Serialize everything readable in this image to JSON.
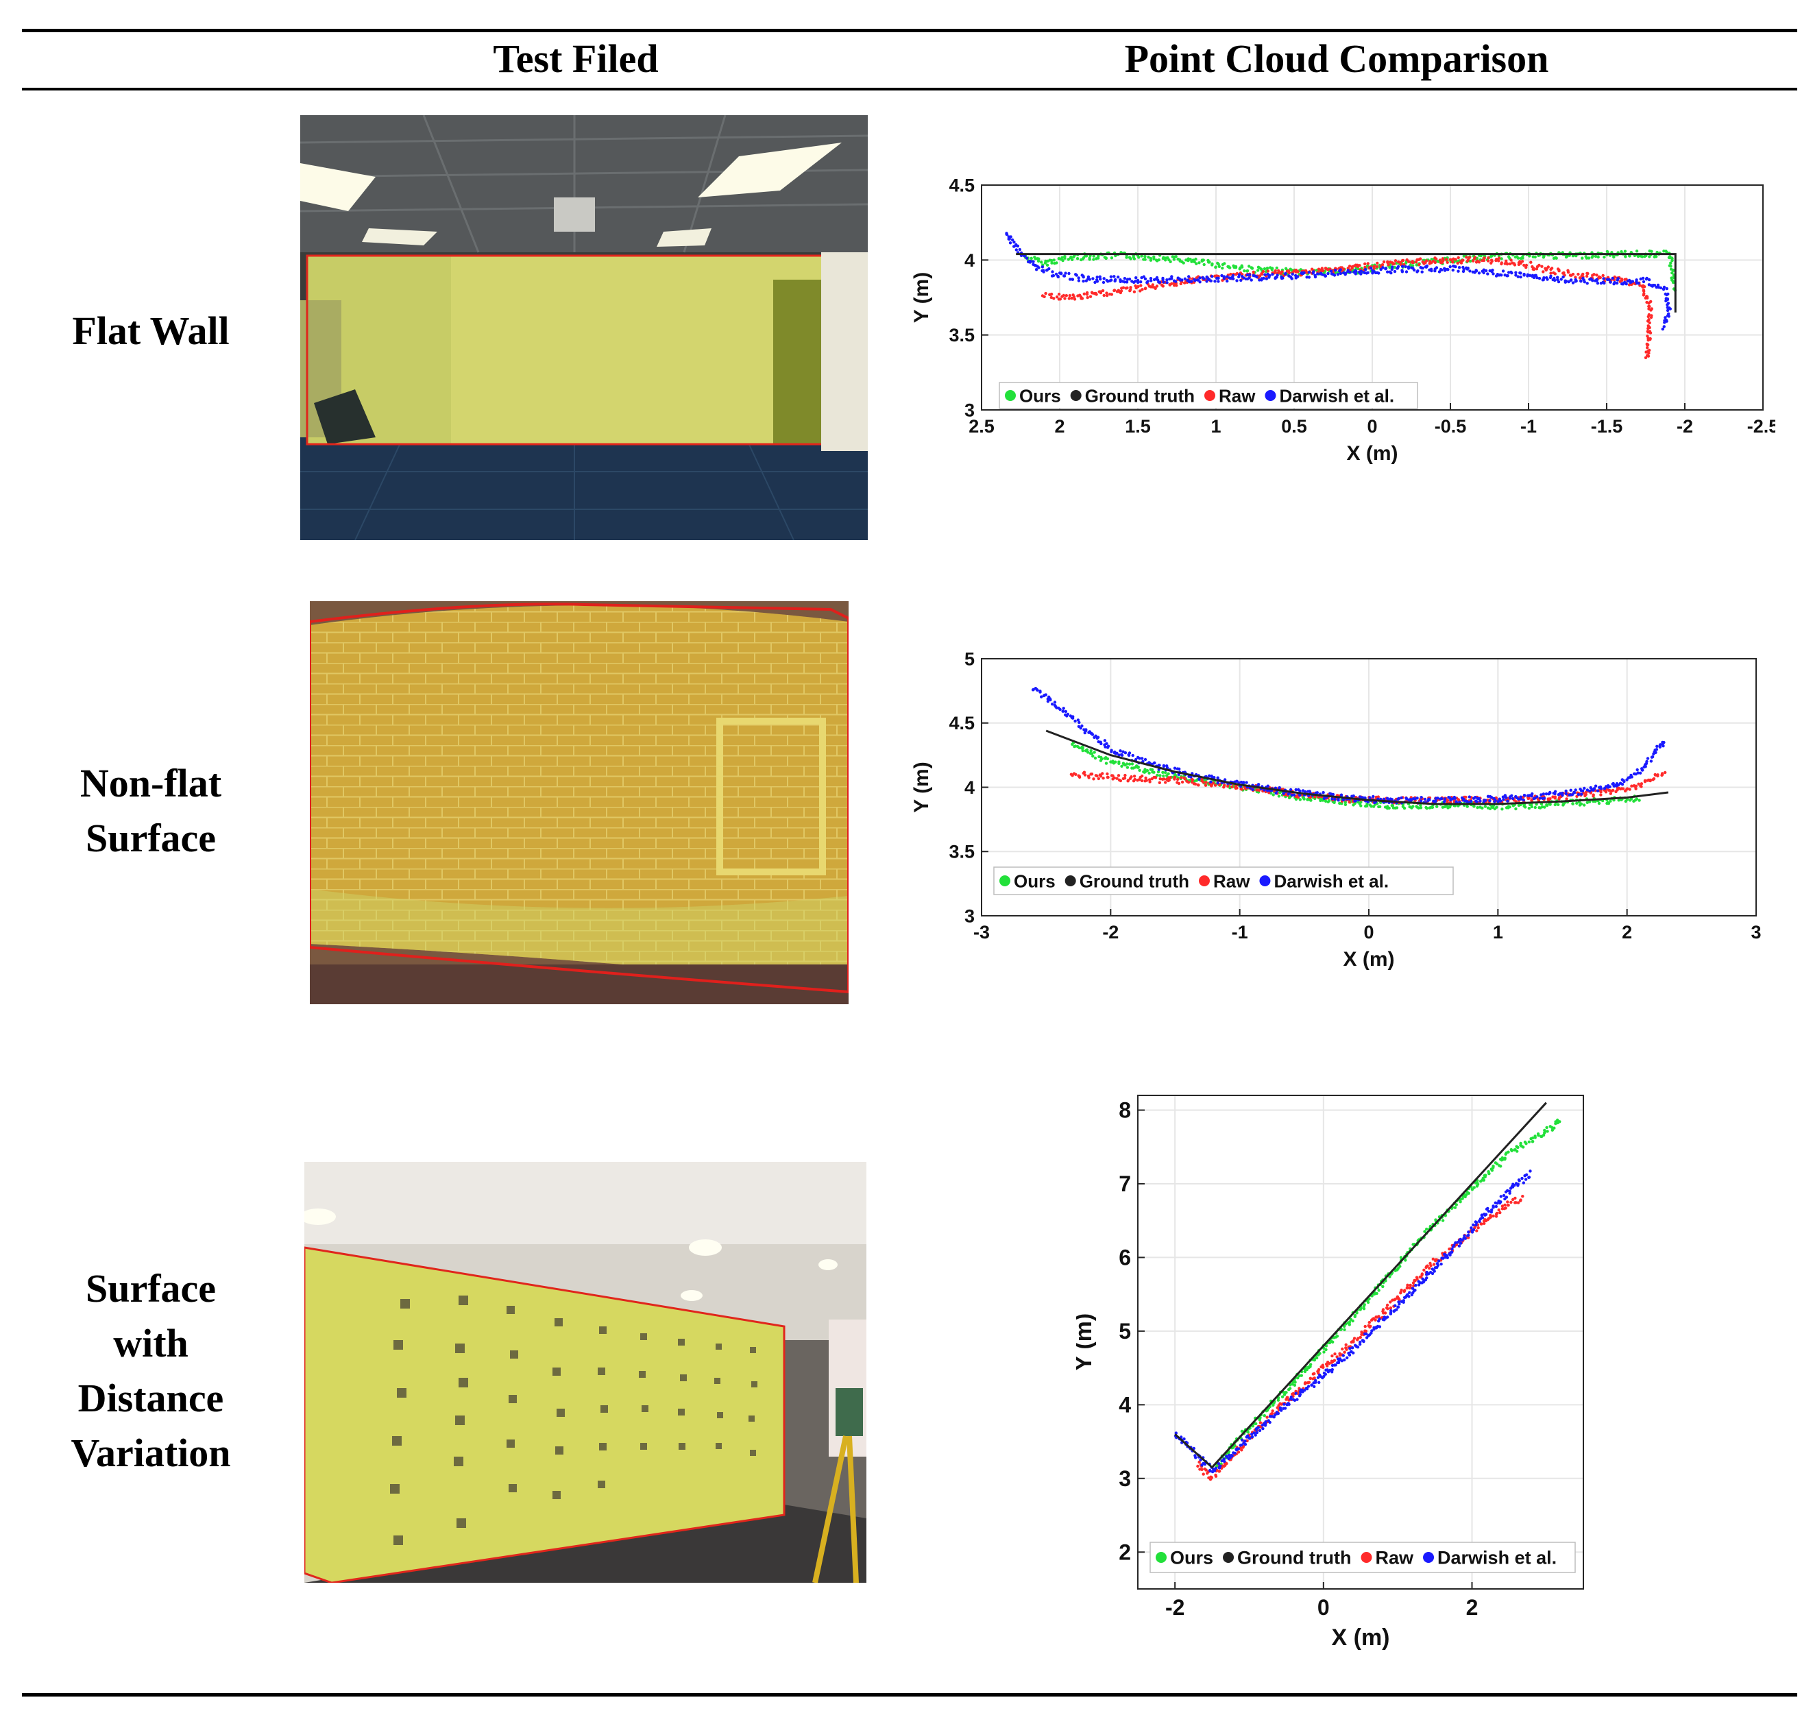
{
  "table": {
    "headers": {
      "col1": "Test Filed",
      "col2": "Point Cloud Comparison"
    },
    "rows": [
      {
        "label_lines": [
          "Flat Wall"
        ]
      },
      {
        "label_lines": [
          "Non-flat",
          "Surface"
        ]
      },
      {
        "label_lines": [
          "Surface",
          "with",
          "Distance",
          "Variation"
        ]
      }
    ]
  },
  "legend": {
    "items": [
      {
        "label": "Ours",
        "color": "#22e03a"
      },
      {
        "label": "Ground truth",
        "color": "#222222"
      },
      {
        "label": "Raw",
        "color": "#ff2a2a"
      },
      {
        "label": "Darwish et al.",
        "color": "#1a1aff"
      }
    ]
  },
  "chart_data": [
    {
      "type": "scatter",
      "title": "",
      "xlabel": "X (m)",
      "ylabel": "Y (m)",
      "xlim": [
        2.5,
        -2.5
      ],
      "ylim": [
        3,
        4.5
      ],
      "x_reversed": true,
      "xticks": [
        2.5,
        2,
        1.5,
        1,
        0.5,
        0,
        -0.5,
        -1,
        -1.5,
        -2,
        -2.5
      ],
      "xtick_labels": [
        "2.5",
        "2",
        "1.5",
        "1",
        "0.5",
        "0",
        "-0.5",
        "-1",
        "-1.5",
        "-2",
        "-2.5"
      ],
      "yticks": [
        3,
        3.5,
        4,
        4.5
      ],
      "ytick_labels": [
        "3",
        "3.5",
        "4",
        "4.5"
      ],
      "legend_position": "bottom-left",
      "series": [
        {
          "name": "Ground truth",
          "kind": "line",
          "points": [
            [
              2.28,
              4.04
            ],
            [
              -1.94,
              4.04
            ],
            [
              -1.94,
              3.65
            ]
          ]
        },
        {
          "name": "Ours",
          "kind": "scatter",
          "points": [
            [
              2.22,
              4.02
            ],
            [
              2.1,
              3.98
            ],
            [
              1.9,
              4.02
            ],
            [
              1.6,
              4.03
            ],
            [
              1.3,
              4.01
            ],
            [
              1.0,
              3.97
            ],
            [
              0.7,
              3.93
            ],
            [
              0.4,
              3.92
            ],
            [
              0.1,
              3.93
            ],
            [
              -0.2,
              3.97
            ],
            [
              -0.5,
              4.0
            ],
            [
              -0.9,
              4.03
            ],
            [
              -1.3,
              4.03
            ],
            [
              -1.6,
              4.04
            ],
            [
              -1.9,
              4.04
            ],
            [
              -1.92,
              3.95
            ],
            [
              -1.93,
              3.8
            ]
          ]
        },
        {
          "name": "Raw",
          "kind": "scatter",
          "points": [
            [
              2.1,
              3.76
            ],
            [
              1.9,
              3.75
            ],
            [
              1.7,
              3.78
            ],
            [
              1.5,
              3.81
            ],
            [
              1.2,
              3.86
            ],
            [
              0.9,
              3.89
            ],
            [
              0.6,
              3.91
            ],
            [
              0.3,
              3.93
            ],
            [
              0.0,
              3.96
            ],
            [
              -0.3,
              3.99
            ],
            [
              -0.6,
              4.0
            ],
            [
              -0.9,
              3.99
            ],
            [
              -1.1,
              3.94
            ],
            [
              -1.3,
              3.9
            ],
            [
              -1.55,
              3.87
            ],
            [
              -1.72,
              3.84
            ],
            [
              -1.78,
              3.7
            ],
            [
              -1.77,
              3.5
            ],
            [
              -1.76,
              3.33
            ]
          ]
        },
        {
          "name": "Darwish et al.",
          "kind": "scatter",
          "points": [
            [
              2.35,
              4.18
            ],
            [
              2.25,
              4.05
            ],
            [
              2.15,
              3.95
            ],
            [
              2.0,
              3.9
            ],
            [
              1.8,
              3.87
            ],
            [
              1.5,
              3.87
            ],
            [
              1.2,
              3.87
            ],
            [
              0.9,
              3.88
            ],
            [
              0.6,
              3.89
            ],
            [
              0.3,
              3.91
            ],
            [
              0.0,
              3.93
            ],
            [
              -0.3,
              3.94
            ],
            [
              -0.6,
              3.94
            ],
            [
              -0.9,
              3.9
            ],
            [
              -1.2,
              3.87
            ],
            [
              -1.5,
              3.86
            ],
            [
              -1.75,
              3.86
            ],
            [
              -1.88,
              3.8
            ],
            [
              -1.9,
              3.65
            ],
            [
              -1.86,
              3.55
            ]
          ]
        }
      ]
    },
    {
      "type": "scatter",
      "title": "",
      "xlabel": "X (m)",
      "ylabel": "Y (m)",
      "xlim": [
        -3,
        3
      ],
      "ylim": [
        3,
        5
      ],
      "xticks": [
        -3,
        -2,
        -1,
        0,
        1,
        2,
        3
      ],
      "xtick_labels": [
        "-3",
        "-2",
        "-1",
        "0",
        "1",
        "2",
        "3"
      ],
      "yticks": [
        3,
        3.5,
        4,
        4.5,
        5
      ],
      "ytick_labels": [
        "3",
        "3.5",
        "4",
        "4.5",
        "5"
      ],
      "legend_position": "bottom-left",
      "series": [
        {
          "name": "Ground truth",
          "kind": "line",
          "points": [
            [
              -2.5,
              4.44
            ],
            [
              -2.0,
              4.25
            ],
            [
              -1.5,
              4.12
            ],
            [
              -1.0,
              4.02
            ],
            [
              -0.5,
              3.95
            ],
            [
              0.0,
              3.9
            ],
            [
              0.5,
              3.87
            ],
            [
              1.0,
              3.87
            ],
            [
              1.5,
              3.89
            ],
            [
              2.0,
              3.92
            ],
            [
              2.32,
              3.96
            ]
          ]
        },
        {
          "name": "Ours",
          "kind": "scatter",
          "points": [
            [
              -2.3,
              4.33
            ],
            [
              -2.0,
              4.2
            ],
            [
              -1.7,
              4.12
            ],
            [
              -1.4,
              4.07
            ],
            [
              -1.1,
              4.02
            ],
            [
              -0.8,
              3.97
            ],
            [
              -0.5,
              3.92
            ],
            [
              -0.2,
              3.89
            ],
            [
              0.1,
              3.86
            ],
            [
              0.4,
              3.86
            ],
            [
              0.7,
              3.86
            ],
            [
              1.0,
              3.85
            ],
            [
              1.3,
              3.86
            ],
            [
              1.6,
              3.88
            ],
            [
              1.9,
              3.9
            ],
            [
              2.1,
              3.92
            ]
          ]
        },
        {
          "name": "Raw",
          "kind": "scatter",
          "points": [
            [
              -2.3,
              4.1
            ],
            [
              -2.0,
              4.08
            ],
            [
              -1.7,
              4.06
            ],
            [
              -1.4,
              4.05
            ],
            [
              -1.1,
              4.02
            ],
            [
              -0.8,
              3.98
            ],
            [
              -0.5,
              3.94
            ],
            [
              -0.2,
              3.91
            ],
            [
              0.1,
              3.9
            ],
            [
              0.4,
              3.9
            ],
            [
              0.7,
              3.9
            ],
            [
              1.0,
              3.9
            ],
            [
              1.3,
              3.91
            ],
            [
              1.6,
              3.94
            ],
            [
              1.9,
              3.97
            ],
            [
              2.1,
              4.02
            ],
            [
              2.3,
              4.13
            ]
          ]
        },
        {
          "name": "Darwish et al.",
          "kind": "scatter",
          "points": [
            [
              -2.6,
              4.77
            ],
            [
              -2.4,
              4.62
            ],
            [
              -2.2,
              4.45
            ],
            [
              -2.0,
              4.3
            ],
            [
              -1.7,
              4.18
            ],
            [
              -1.4,
              4.1
            ],
            [
              -1.1,
              4.04
            ],
            [
              -0.8,
              3.99
            ],
            [
              -0.5,
              3.95
            ],
            [
              -0.2,
              3.92
            ],
            [
              0.1,
              3.9
            ],
            [
              0.4,
              3.9
            ],
            [
              0.7,
              3.9
            ],
            [
              1.0,
              3.91
            ],
            [
              1.3,
              3.93
            ],
            [
              1.6,
              3.96
            ],
            [
              1.9,
              4.01
            ],
            [
              2.1,
              4.12
            ],
            [
              2.2,
              4.25
            ],
            [
              2.3,
              4.37
            ]
          ]
        }
      ]
    },
    {
      "type": "scatter",
      "title": "",
      "xlabel": "X (m)",
      "ylabel": "Y (m)",
      "xlim": [
        -2.5,
        3.5
      ],
      "ylim": [
        1.5,
        8.2
      ],
      "xticks": [
        -2,
        0,
        2
      ],
      "xtick_labels": [
        "-2",
        "0",
        "2"
      ],
      "yticks": [
        2,
        3,
        4,
        5,
        6,
        7,
        8
      ],
      "ytick_labels": [
        "2",
        "3",
        "4",
        "5",
        "6",
        "7",
        "8"
      ],
      "legend_position": "bottom",
      "series": [
        {
          "name": "Ground truth",
          "kind": "line",
          "points": [
            [
              -2.0,
              3.6
            ],
            [
              -1.5,
              3.15
            ],
            [
              3.0,
              8.1
            ]
          ]
        },
        {
          "name": "Ours",
          "kind": "scatter",
          "points": [
            [
              -1.45,
              3.15
            ],
            [
              -1.0,
              3.7
            ],
            [
              -0.5,
              4.2
            ],
            [
              0.0,
              4.75
            ],
            [
              0.5,
              5.3
            ],
            [
              1.0,
              5.9
            ],
            [
              1.5,
              6.45
            ],
            [
              2.0,
              6.95
            ],
            [
              2.5,
              7.4
            ],
            [
              3.0,
              7.72
            ],
            [
              3.2,
              7.86
            ]
          ]
        },
        {
          "name": "Raw",
          "kind": "scatter",
          "points": [
            [
              -1.7,
              3.2
            ],
            [
              -1.5,
              3.0
            ],
            [
              -1.0,
              3.55
            ],
            [
              -0.5,
              4.05
            ],
            [
              0.0,
              4.5
            ],
            [
              0.5,
              4.95
            ],
            [
              1.0,
              5.45
            ],
            [
              1.5,
              5.95
            ],
            [
              2.0,
              6.35
            ],
            [
              2.5,
              6.75
            ],
            [
              2.7,
              6.8
            ]
          ]
        },
        {
          "name": "Darwish et al.",
          "kind": "scatter",
          "points": [
            [
              -2.0,
              3.62
            ],
            [
              -1.5,
              3.1
            ],
            [
              -1.0,
              3.55
            ],
            [
              -0.5,
              4.0
            ],
            [
              0.0,
              4.4
            ],
            [
              0.5,
              4.85
            ],
            [
              1.0,
              5.35
            ],
            [
              1.5,
              5.85
            ],
            [
              2.0,
              6.4
            ],
            [
              2.5,
              6.9
            ],
            [
              2.8,
              7.15
            ]
          ]
        }
      ]
    }
  ]
}
